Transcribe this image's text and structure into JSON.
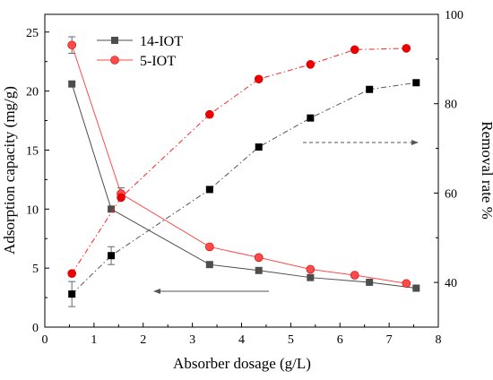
{
  "chart_data": {
    "type": "line",
    "xlabel": "Absorber dosage (g/L)",
    "ylabel_left": "Adsorption capacity (mg/g)",
    "ylabel_right": "Removal rate %",
    "xlim": [
      0,
      8
    ],
    "ylim_left": [
      0,
      26.5
    ],
    "ylim_right": [
      30,
      100
    ],
    "x_ticks": [
      "0",
      "1",
      "2",
      "3",
      "4",
      "5",
      "6",
      "7",
      "8"
    ],
    "y_left_ticks": [
      "0",
      "5",
      "10",
      "15",
      "20",
      "25"
    ],
    "y_right_ticks": [
      "40",
      "60",
      "80",
      "100"
    ],
    "legend_position": "top-left",
    "grid": false,
    "series": [
      {
        "name": "14-IOT",
        "color": "#4d4d4d",
        "marker": "square",
        "axis": "left",
        "line_style": "solid",
        "x": [
          0.55,
          1.35,
          3.35,
          4.35,
          5.4,
          6.6,
          7.55
        ],
        "y": [
          20.6,
          10.0,
          5.3,
          4.8,
          4.2,
          3.8,
          3.3
        ]
      },
      {
        "name": "5-IOT",
        "color": "#ff4a4a",
        "marker": "circle",
        "axis": "left",
        "line_style": "solid",
        "x": [
          0.55,
          1.55,
          3.35,
          4.35,
          5.4,
          6.3,
          7.35
        ],
        "y": [
          23.9,
          11.3,
          6.8,
          5.9,
          4.9,
          4.4,
          3.7
        ],
        "error": [
          0.7,
          0.5,
          0,
          0,
          0,
          0,
          0
        ]
      },
      {
        "name": "",
        "color": "#000000",
        "line_color": "#555555",
        "marker": "square",
        "axis": "right",
        "line_style": "dashdot",
        "x": [
          0.55,
          1.35,
          3.35,
          4.35,
          5.4,
          6.6,
          7.55
        ],
        "y": [
          37.4,
          46.0,
          60.8,
          70.3,
          76.8,
          83.2,
          84.7
        ],
        "error": [
          2.8,
          2.0,
          0,
          0,
          0,
          0,
          0
        ]
      },
      {
        "name": "",
        "color": "#ee0000",
        "line_color": "#ff2222",
        "marker": "circle",
        "axis": "right",
        "line_style": "dashdot",
        "x": [
          0.55,
          1.55,
          3.35,
          4.35,
          5.4,
          6.3,
          7.35
        ],
        "y": [
          42.0,
          59.0,
          77.6,
          85.5,
          88.8,
          92.1,
          92.4
        ],
        "error": [
          0,
          0,
          0,
          0,
          0,
          0,
          0
        ]
      }
    ]
  }
}
